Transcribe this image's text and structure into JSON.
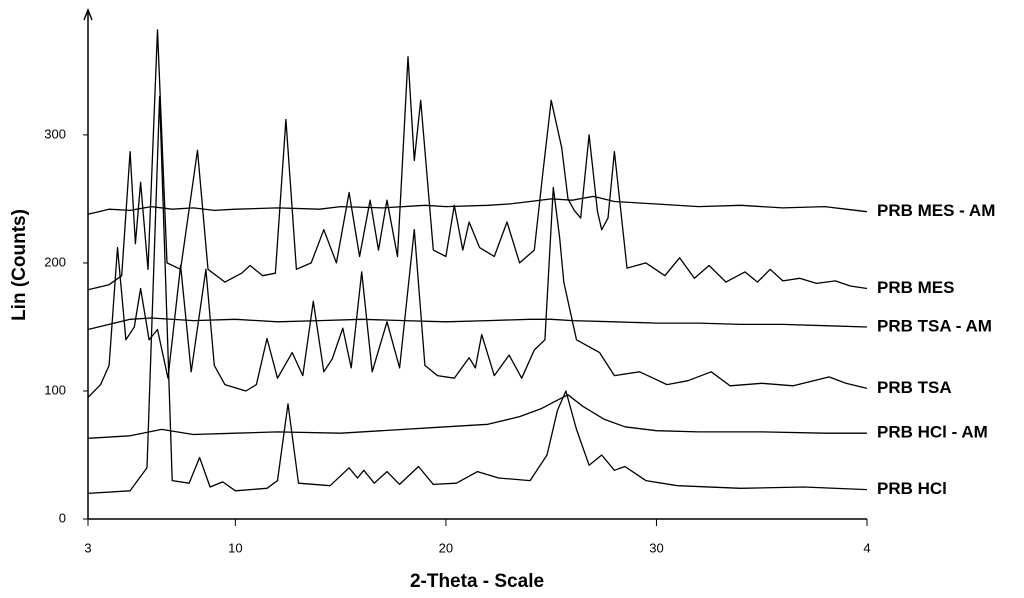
{
  "chart_data": {
    "type": "line",
    "xlabel": "2-Theta - Scale",
    "ylabel": "Lin (Counts)",
    "xlim": [
      3,
      40
    ],
    "ylim": [
      0,
      396
    ],
    "xticks": [
      3,
      10,
      20,
      30,
      {
        "value": 40,
        "label": "4"
      }
    ],
    "yticks": [
      0,
      100,
      200,
      300
    ],
    "series": [
      {
        "name": "PRB MES - AM",
        "color": "#000000",
        "x": [
          3,
          4,
          5,
          6,
          7,
          8,
          9,
          10,
          12,
          14,
          15,
          17,
          19,
          20,
          22,
          23,
          24,
          25,
          26,
          27,
          28,
          30,
          32,
          34,
          36,
          38,
          39,
          40
        ],
        "values": [
          238,
          242,
          241,
          244,
          242,
          243,
          241,
          242,
          243,
          242,
          244,
          243,
          245,
          244,
          245,
          246,
          248,
          250,
          249,
          252,
          248,
          246,
          244,
          245,
          243,
          244,
          242,
          240
        ]
      },
      {
        "name": "PRB MES",
        "color": "#000000",
        "x": [
          3,
          4,
          4.6,
          5.0,
          5.25,
          5.5,
          5.85,
          6.3,
          6.75,
          7.4,
          8.2,
          8.7,
          9.5,
          10.3,
          10.7,
          11.3,
          11.9,
          12.4,
          12.9,
          13.6,
          14.2,
          14.8,
          15.4,
          15.9,
          16.4,
          16.8,
          17.2,
          17.7,
          18.2,
          18.5,
          18.8,
          19.4,
          20.0,
          20.4,
          20.8,
          21.1,
          21.6,
          22.3,
          22.9,
          23.5,
          24.2,
          24.6,
          25.0,
          25.5,
          25.8,
          26.1,
          26.4,
          26.8,
          27.2,
          27.4,
          27.7,
          28.0,
          28.6,
          29.5,
          30.4,
          31.1,
          31.8,
          32.5,
          33.3,
          34.2,
          34.8,
          35.4,
          36.0,
          36.8,
          37.6,
          38.5,
          39.2,
          40
        ],
        "values": [
          179,
          183,
          190,
          287,
          215,
          263,
          195,
          382,
          200,
          195,
          288,
          195,
          185,
          192,
          198,
          190,
          192,
          312,
          195,
          200,
          226,
          200,
          255,
          205,
          249,
          210,
          249,
          205,
          361,
          280,
          327,
          210,
          205,
          245,
          210,
          232,
          212,
          205,
          232,
          200,
          210,
          270,
          327,
          290,
          250,
          241,
          235,
          300,
          240,
          226,
          235,
          287,
          196,
          200,
          190,
          204,
          188,
          198,
          185,
          193,
          185,
          195,
          186,
          188,
          184,
          186,
          182,
          180
        ]
      },
      {
        "name": "PRB TSA - AM",
        "color": "#000000",
        "x": [
          3,
          4,
          5,
          6,
          8,
          10,
          12,
          14,
          16,
          18,
          20,
          22,
          24,
          25,
          26,
          28,
          30,
          32,
          34,
          36,
          38,
          40
        ],
        "values": [
          148,
          152,
          156,
          157,
          155,
          156,
          154,
          155,
          156,
          155,
          154,
          155,
          156,
          156,
          155,
          154,
          153,
          153,
          152,
          152,
          151,
          150
        ]
      },
      {
        "name": "PRB TSA",
        "color": "#000000",
        "x": [
          3,
          3.6,
          4.0,
          4.4,
          4.8,
          5.2,
          5.5,
          5.9,
          6.3,
          6.8,
          7.4,
          7.9,
          8.6,
          9.0,
          9.5,
          10.5,
          11.0,
          11.5,
          12.0,
          12.7,
          13.2,
          13.7,
          14.2,
          14.6,
          15.1,
          15.5,
          16.0,
          16.5,
          17.2,
          17.8,
          18.5,
          19.0,
          19.6,
          20.4,
          21.1,
          21.4,
          21.7,
          22.3,
          23.0,
          23.6,
          24.2,
          24.7,
          25.1,
          25.4,
          25.6,
          26.2,
          27.3,
          28.0,
          29.2,
          30.5,
          31.5,
          32.6,
          33.5,
          35.0,
          36.5,
          38.2,
          39.0,
          40
        ],
        "values": [
          95,
          105,
          120,
          212,
          140,
          150,
          180,
          140,
          148,
          110,
          198,
          115,
          195,
          120,
          105,
          100,
          105,
          141,
          110,
          130,
          112,
          170,
          115,
          125,
          149,
          118,
          193,
          115,
          154,
          118,
          226,
          120,
          112,
          110,
          126,
          118,
          144,
          112,
          128,
          110,
          132,
          140,
          259,
          220,
          185,
          140,
          130,
          112,
          115,
          105,
          108,
          115,
          104,
          106,
          104,
          111,
          106,
          102
        ]
      },
      {
        "name": "PRB HCl - AM",
        "color": "#000000",
        "x": [
          3,
          5,
          6.5,
          8,
          10,
          12,
          15,
          18,
          20,
          22,
          23.5,
          24.5,
          25.2,
          25.8,
          26.5,
          27.5,
          28.5,
          30,
          32,
          35,
          38,
          40
        ],
        "values": [
          63,
          65,
          70,
          66,
          67,
          68,
          67,
          70,
          72,
          74,
          80,
          86,
          92,
          97,
          88,
          78,
          72,
          69,
          68,
          68,
          67,
          67
        ],
        "value_labels": null
      },
      {
        "name": "PRB HCl",
        "color": "#000000",
        "x": [
          3,
          5,
          5.8,
          6.4,
          7.0,
          7.8,
          8.3,
          8.8,
          9.4,
          10.0,
          11.5,
          12.0,
          12.5,
          13.0,
          14.5,
          15.4,
          15.8,
          16.1,
          16.6,
          17.2,
          17.8,
          18.7,
          19.4,
          20.5,
          21.5,
          22.5,
          24.0,
          24.8,
          25.3,
          25.7,
          26.2,
          26.8,
          27.4,
          28.0,
          28.5,
          29.5,
          31,
          34,
          37,
          40
        ],
        "values": [
          20,
          22,
          40,
          330,
          30,
          28,
          48,
          25,
          29,
          22,
          24,
          30,
          90,
          28,
          26,
          40,
          32,
          38,
          28,
          37,
          27,
          41,
          27,
          28,
          37,
          32,
          30,
          50,
          85,
          100,
          70,
          42,
          50,
          38,
          41,
          30,
          26,
          24,
          25,
          23
        ]
      }
    ]
  }
}
